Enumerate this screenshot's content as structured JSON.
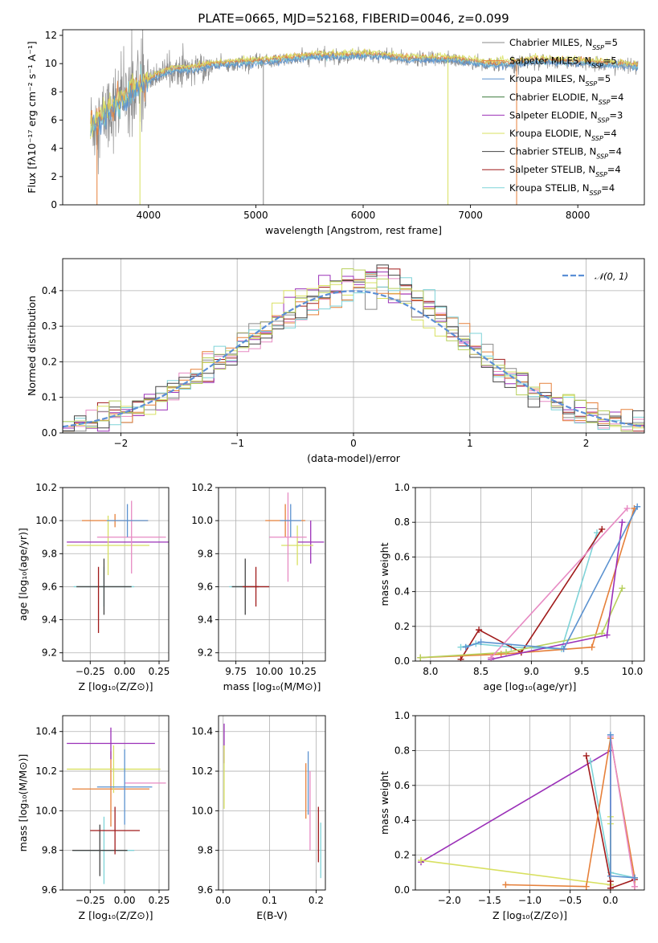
{
  "figure": {
    "title": "PLATE=0665, MJD=52168, FIBERID=0046, z=0.099",
    "colors": {
      "Chabrier MILES": "#8a8a8a",
      "Salpeter MILES": "#e6803a",
      "Kroupa MILES": "#5b92d0",
      "Chabrier ELODIE": "#3a7a3a",
      "Salpeter ELODIE": "#9b30b8",
      "Kroupa ELODIE": "#d8e060",
      "Chabrier STELIB": "#444444",
      "Salpeter STELIB": "#a01a1a",
      "Kroupa STELIB": "#7ed3d8",
      "Pink": "#e78ac3",
      "Olive": "#b7d05c",
      "Normal": "#5b8fd6"
    }
  },
  "chart_data": [
    {
      "id": "spectrum",
      "type": "line",
      "title": "PLATE=0665, MJD=52168, FIBERID=0046, z=0.099",
      "xlabel": "wavelength [Angstrom, rest frame]",
      "ylabel": "Flux [fλ10⁻¹⁷ erg cm⁻² s⁻¹ A⁻¹]",
      "xlim": [
        3200,
        8620
      ],
      "ylim": [
        0,
        12.4
      ],
      "xticks": [
        "4000",
        "5000",
        "6000",
        "7000",
        "8000"
      ],
      "yticks": [
        "0",
        "2",
        "4",
        "6",
        "8",
        "10",
        "12"
      ],
      "grid": false,
      "legend_position": "top-right",
      "legend": [
        {
          "label": "Chabrier MILES, N",
          "sub": "SSP",
          "suffix": "=5",
          "color": "#8a8a8a"
        },
        {
          "label": "Salpeter MILES, N",
          "sub": "SSP",
          "suffix": "=5",
          "color": "#e6803a"
        },
        {
          "label": "Kroupa MILES, N",
          "sub": "SSP",
          "suffix": "=5",
          "color": "#5b92d0"
        },
        {
          "label": "Chabrier ELODIE, N",
          "sub": "SSP",
          "suffix": "=4",
          "color": "#3a7a3a"
        },
        {
          "label": "Salpeter ELODIE, N",
          "sub": "SSP",
          "suffix": "=3",
          "color": "#9b30b8"
        },
        {
          "label": "Kroupa ELODIE, N",
          "sub": "SSP",
          "suffix": "=4",
          "color": "#d8e060"
        },
        {
          "label": "Chabrier STELIB, N",
          "sub": "SSP",
          "suffix": "=4",
          "color": "#444444"
        },
        {
          "label": "Salpeter STELIB, N",
          "sub": "SSP",
          "suffix": "=4",
          "color": "#a01a1a"
        },
        {
          "label": "Kroupa STELIB, N",
          "sub": "SSP",
          "suffix": "=4",
          "color": "#7ed3d8"
        }
      ],
      "continuum": {
        "x": [
          3460,
          3550,
          3650,
          3760,
          3850,
          3950,
          4050,
          4200,
          4400,
          4600,
          4800,
          5000,
          5200,
          5400,
          5600,
          5800,
          6000,
          6200,
          6400,
          6600,
          6800,
          7000,
          7200,
          7400,
          7600,
          7800,
          8000,
          8200,
          8400,
          8560
        ],
        "y": [
          5.6,
          6.0,
          6.7,
          7.4,
          8.0,
          8.5,
          9.0,
          9.5,
          9.6,
          9.9,
          10.0,
          10.1,
          10.2,
          10.4,
          10.5,
          10.5,
          10.6,
          10.5,
          10.3,
          10.3,
          10.3,
          10.1,
          9.9,
          10.0,
          10.2,
          10.1,
          10.1,
          10.0,
          9.9,
          9.8
        ]
      },
      "model_series": [
        {
          "color": "#7ed3d8",
          "offset": 0.0
        },
        {
          "color": "#e6803a",
          "offset": 0.15
        },
        {
          "color": "#d8e060",
          "offset": 0.25
        },
        {
          "color": "#5b92d0",
          "offset": -0.1
        }
      ],
      "data_series_color": "#8a8a8a",
      "dropouts": [
        {
          "x": 3520,
          "color": "#e6803a"
        },
        {
          "x": 3920,
          "color": "#d8e060"
        },
        {
          "x": 5070,
          "color": "#8a8a8a"
        },
        {
          "x": 6790,
          "color": "#d8e060"
        },
        {
          "x": 7430,
          "color": "#e6803a"
        }
      ]
    },
    {
      "id": "residuals",
      "type": "histogram",
      "xlabel": "(data-model)/error",
      "ylabel": "Normed distribution",
      "xlim": [
        -2.5,
        2.5
      ],
      "ylim": [
        0,
        0.49
      ],
      "xticks": [
        "−2",
        "−1",
        "0",
        "1",
        "2"
      ],
      "yticks": [
        "0.0",
        "0.1",
        "0.2",
        "0.3",
        "0.4"
      ],
      "grid": true,
      "legend_position": "top-right",
      "legend_label": "𝒩(0, 1)",
      "bin_width": 0.1,
      "bin_start": -2.5
    },
    {
      "id": "age-vs-z",
      "type": "scatter",
      "xlabel": "Z [log₁₀(Z/Z⊙)]",
      "ylabel": "age  [log₁₀(age/yr)]",
      "xlim": [
        -0.45,
        0.32
      ],
      "ylim": [
        9.15,
        10.2
      ],
      "xticks": [
        "−0.25",
        "0.00",
        "0.25"
      ],
      "yticks": [
        "9.2",
        "9.4",
        "9.6",
        "9.8",
        "10.0",
        "10.2"
      ],
      "points": [
        {
          "x": -0.15,
          "y": 9.6,
          "xerr": 0.22,
          "yerr": 0.12,
          "color": "#7ed3d8"
        },
        {
          "x": -0.15,
          "y": 9.6,
          "xerr": 0.2,
          "yerr": 0.17,
          "color": "#444444"
        },
        {
          "x": -0.19,
          "y": 9.52,
          "xerr": 0.0,
          "yerr": 0.2,
          "color": "#a01a1a"
        },
        {
          "x": -0.07,
          "y": 10.0,
          "xerr": 0.24,
          "yerr": 0.04,
          "color": "#e6803a"
        },
        {
          "x": 0.0,
          "y": 9.87,
          "xerr": 0.42,
          "yerr": 0.0,
          "color": "#9b30b8"
        },
        {
          "x": -0.12,
          "y": 9.85,
          "xerr": 0.3,
          "yerr": 0.18,
          "color": "#d8e060"
        },
        {
          "x": 0.05,
          "y": 9.9,
          "xerr": 0.25,
          "yerr": 0.22,
          "color": "#e78ac3"
        },
        {
          "x": 0.02,
          "y": 10.0,
          "xerr": 0.15,
          "yerr": 0.1,
          "color": "#5b92d0"
        }
      ]
    },
    {
      "id": "age-vs-mass",
      "type": "scatter",
      "xlabel": "mass [log₁₀(M/M⊙)]",
      "ylabel": "",
      "xlim": [
        9.62,
        10.42
      ],
      "ylim": [
        9.15,
        10.2
      ],
      "xticks": [
        "9.75",
        "10.00",
        "10.25"
      ],
      "yticks": [
        "9.2",
        "9.4",
        "9.6",
        "9.8",
        "10.0",
        "10.2"
      ],
      "points": [
        {
          "x": 9.85,
          "y": 9.6,
          "xerr": 0.15,
          "yerr": 0.0,
          "color": "#7ed3d8"
        },
        {
          "x": 9.82,
          "y": 9.6,
          "xerr": 0.1,
          "yerr": 0.17,
          "color": "#444444"
        },
        {
          "x": 9.9,
          "y": 9.6,
          "xerr": 0.1,
          "yerr": 0.12,
          "color": "#a01a1a"
        },
        {
          "x": 10.12,
          "y": 10.0,
          "xerr": 0.15,
          "yerr": 0.1,
          "color": "#e6803a"
        },
        {
          "x": 10.31,
          "y": 9.87,
          "xerr": 0.1,
          "yerr": 0.13,
          "color": "#9b30b8"
        },
        {
          "x": 10.21,
          "y": 9.85,
          "xerr": 0.12,
          "yerr": 0.12,
          "color": "#d8e060"
        },
        {
          "x": 10.14,
          "y": 9.9,
          "xerr": 0.14,
          "yerr": 0.27,
          "color": "#e78ac3"
        },
        {
          "x": 10.16,
          "y": 10.0,
          "xerr": 0.08,
          "yerr": 0.1,
          "color": "#5b92d0"
        }
      ]
    },
    {
      "id": "weight-vs-age",
      "type": "line",
      "xlabel": "age  [log₁₀(age/yr)]",
      "ylabel": "mass weight",
      "xlim": [
        7.85,
        10.12
      ],
      "ylim": [
        0,
        1.0
      ],
      "xticks": [
        "8.0",
        "8.5",
        "9.0",
        "9.5",
        "10.0"
      ],
      "yticks": [
        "0.0",
        "0.2",
        "0.4",
        "0.6",
        "0.8",
        "1.0"
      ],
      "grid": true,
      "series": [
        {
          "color": "#7ed3d8",
          "x": [
            8.3,
            8.45,
            8.8,
            9.3,
            9.65
          ],
          "y": [
            0.08,
            0.1,
            0.08,
            0.07,
            0.74
          ]
        },
        {
          "color": "#a01a1a",
          "x": [
            8.3,
            8.48,
            8.9,
            9.7
          ],
          "y": [
            0.01,
            0.18,
            0.05,
            0.76
          ]
        },
        {
          "color": "#e6803a",
          "x": [
            7.9,
            8.7,
            9.6,
            10.02
          ],
          "y": [
            0.02,
            0.04,
            0.08,
            0.88
          ]
        },
        {
          "color": "#b7d05c",
          "x": [
            7.9,
            8.75,
            9.7,
            9.9
          ],
          "y": [
            0.02,
            0.05,
            0.16,
            0.42
          ]
        },
        {
          "color": "#9b30b8",
          "x": [
            8.6,
            9.75,
            9.9
          ],
          "y": [
            0.01,
            0.15,
            0.8
          ]
        },
        {
          "color": "#e78ac3",
          "x": [
            8.6,
            9.95
          ],
          "y": [
            0.02,
            0.88
          ]
        },
        {
          "color": "#5b92d0",
          "x": [
            8.35,
            8.5,
            9.32,
            10.05
          ],
          "y": [
            0.08,
            0.11,
            0.07,
            0.89
          ]
        }
      ]
    },
    {
      "id": "mass-vs-z",
      "type": "scatter",
      "xlabel": "Z [log₁₀(Z/Z⊙)]",
      "ylabel": "mass [log₁₀(M/M⊙)]",
      "xlim": [
        -0.45,
        0.32
      ],
      "ylim": [
        9.6,
        10.48
      ],
      "xticks": [
        "−0.25",
        "0.00",
        "0.25"
      ],
      "yticks": [
        "9.6",
        "9.8",
        "10.0",
        "10.2",
        "10.4"
      ],
      "points": [
        {
          "x": -0.15,
          "y": 9.8,
          "xerr": 0.22,
          "yerr": 0.17,
          "color": "#7ed3d8"
        },
        {
          "x": -0.18,
          "y": 9.8,
          "xerr": 0.2,
          "yerr": 0.13,
          "color": "#444444"
        },
        {
          "x": -0.07,
          "y": 9.9,
          "xerr": 0.18,
          "yerr": 0.12,
          "color": "#a01a1a"
        },
        {
          "x": -0.1,
          "y": 10.11,
          "xerr": 0.28,
          "yerr": 0.19,
          "color": "#e6803a"
        },
        {
          "x": -0.1,
          "y": 10.34,
          "xerr": 0.32,
          "yerr": 0.08,
          "color": "#9b30b8"
        },
        {
          "x": -0.08,
          "y": 10.21,
          "xerr": 0.34,
          "yerr": 0.12,
          "color": "#d8e060"
        },
        {
          "x": 0.15,
          "y": 10.14,
          "xerr": 0.15,
          "yerr": 0.0,
          "color": "#e78ac3"
        },
        {
          "x": 0.0,
          "y": 10.12,
          "xerr": 0.2,
          "yerr": 0.19,
          "color": "#5b92d0"
        }
      ]
    },
    {
      "id": "mass-vs-ebv",
      "type": "scatter",
      "xlabel": "E(B-V)",
      "ylabel": "",
      "xlim": [
        -0.01,
        0.22
      ],
      "ylim": [
        9.6,
        10.48
      ],
      "xticks": [
        "0.0",
        "0.1",
        "0.2"
      ],
      "yticks": [
        "9.6",
        "9.8",
        "10.0",
        "10.2",
        "10.4"
      ],
      "points": [
        {
          "x": 0.002,
          "y": 10.34,
          "xerr": 0.0,
          "yerr": 0.1,
          "color": "#9b30b8"
        },
        {
          "x": 0.002,
          "y": 10.17,
          "xerr": 0.0,
          "yerr": 0.16,
          "color": "#d8e060"
        },
        {
          "x": 0.178,
          "y": 10.1,
          "xerr": 0.0,
          "yerr": 0.14,
          "color": "#e6803a"
        },
        {
          "x": 0.183,
          "y": 10.14,
          "xerr": 0.0,
          "yerr": 0.16,
          "color": "#5b92d0"
        },
        {
          "x": 0.187,
          "y": 10.0,
          "xerr": 0.0,
          "yerr": 0.2,
          "color": "#e78ac3"
        },
        {
          "x": 0.205,
          "y": 9.88,
          "xerr": 0.0,
          "yerr": 0.14,
          "color": "#a01a1a"
        },
        {
          "x": 0.21,
          "y": 9.8,
          "xerr": 0.0,
          "yerr": 0.14,
          "color": "#7ed3d8"
        }
      ]
    },
    {
      "id": "weight-vs-z",
      "type": "line",
      "xlabel": "Z [log₁₀(Z/Z⊙)]",
      "ylabel": "mass weight",
      "xlim": [
        -2.42,
        0.42
      ],
      "ylim": [
        0,
        1.0
      ],
      "xticks": [
        "−2.0",
        "−1.5",
        "−1.0",
        "−0.5",
        "0.0"
      ],
      "yticks": [
        "0.0",
        "0.2",
        "0.4",
        "0.6",
        "0.8",
        "1.0"
      ],
      "grid": true,
      "series": [
        {
          "color": "#9b30b8",
          "x": [
            -2.35,
            0.0,
            0.0
          ],
          "y": [
            0.16,
            0.8,
            0.03
          ]
        },
        {
          "color": "#d8e060",
          "x": [
            -2.35,
            0.0,
            0.0,
            0.0
          ],
          "y": [
            0.17,
            0.03,
            0.42,
            0.38
          ]
        },
        {
          "color": "#7ed3d8",
          "x": [
            -0.25,
            0.0,
            0.3
          ],
          "y": [
            0.74,
            0.1,
            0.07
          ]
        },
        {
          "color": "#a01a1a",
          "x": [
            -0.3,
            0.0,
            0.0,
            0.3
          ],
          "y": [
            0.77,
            0.05,
            0.01,
            0.06
          ]
        },
        {
          "color": "#e6803a",
          "x": [
            -1.3,
            -0.3,
            0.0,
            0.3,
            0.3
          ],
          "y": [
            0.03,
            0.02,
            0.87,
            0.07,
            0.02
          ]
        },
        {
          "color": "#e78ac3",
          "x": [
            0.0,
            0.3
          ],
          "y": [
            0.88,
            0.02
          ]
        },
        {
          "color": "#5b92d0",
          "x": [
            0.0,
            0.0,
            0.3
          ],
          "y": [
            0.89,
            0.08,
            0.07
          ]
        }
      ]
    }
  ]
}
